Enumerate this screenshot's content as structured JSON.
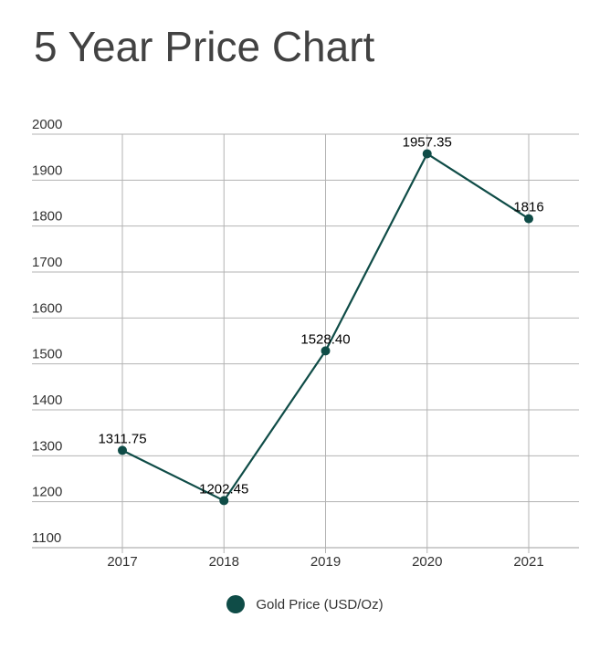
{
  "chart_data": {
    "type": "line",
    "title": "5 Year Price Chart",
    "xlabel": "",
    "ylabel": "",
    "categories": [
      "2017",
      "2018",
      "2019",
      "2020",
      "2021"
    ],
    "series": [
      {
        "name": "Gold Price (USD/Oz)",
        "values": [
          1311.75,
          1202.45,
          1528.4,
          1957.35,
          1816
        ],
        "labels": [
          "1311.75",
          "1202.45",
          "1528.40",
          "1957.35",
          "1816"
        ],
        "color": "#0f4c47"
      }
    ],
    "ylim": [
      1100,
      2000
    ],
    "yticks": [
      1100,
      1200,
      1300,
      1400,
      1500,
      1600,
      1700,
      1800,
      1900,
      2000
    ],
    "grid": true,
    "legend_position": "bottom"
  }
}
